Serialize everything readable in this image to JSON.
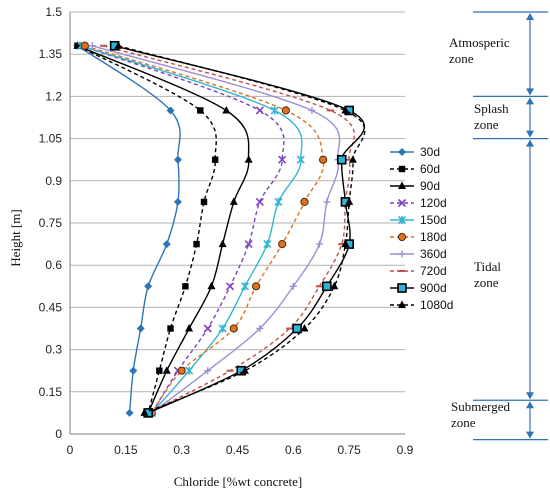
{
  "chart_data": {
    "type": "line",
    "title": "",
    "xlabel": "Chloride [%wt concrete]",
    "ylabel": "Height [m]",
    "xlim": [
      0,
      0.9
    ],
    "ylim": [
      0,
      1.5
    ],
    "xticks": [
      "0",
      "0.15",
      "0.3",
      "0.45",
      "0.6",
      "0.75",
      "0.9"
    ],
    "yticks": [
      "0",
      "0.15",
      "0.3",
      "0.45",
      "0.6",
      "0.75",
      "0.9",
      "1.05",
      "1.2",
      "1.35",
      "1.5"
    ],
    "grid": "horizontal",
    "legend_position": "right",
    "colors": {
      "30d": "#2e75b6",
      "black": "#000000",
      "purple": "#7f3fbf",
      "cyan": "#34b6d1",
      "orange": "#e2711d",
      "lilac": "#9b8fd6",
      "red": "#c0504d",
      "zone": "#2e75b6",
      "grid": "#b3b3b3"
    },
    "y": [
      1.38,
      1.15,
      0.975,
      0.825,
      0.675,
      0.525,
      0.375,
      0.225,
      0.075
    ],
    "series": [
      {
        "name": "30d",
        "style": "solid",
        "marker": "diamond",
        "color": "#2e75b6",
        "x": [
          0.02,
          0.27,
          0.29,
          0.29,
          0.26,
          0.21,
          0.19,
          0.17,
          0.16
        ]
      },
      {
        "name": "60d",
        "style": "dashed",
        "marker": "square",
        "color": "#000000",
        "x": [
          0.02,
          0.35,
          0.39,
          0.36,
          0.34,
          0.31,
          0.27,
          0.24,
          0.21
        ]
      },
      {
        "name": "90d",
        "style": "solid",
        "marker": "triangle",
        "color": "#000000",
        "x": [
          0.02,
          0.42,
          0.48,
          0.44,
          0.41,
          0.38,
          0.32,
          0.26,
          0.21
        ]
      },
      {
        "name": "120d",
        "style": "dashed",
        "marker": "x",
        "color": "#7f3fbf",
        "x": [
          0.03,
          0.51,
          0.57,
          0.51,
          0.48,
          0.43,
          0.37,
          0.29,
          0.22
        ]
      },
      {
        "name": "150d",
        "style": "solid",
        "marker": "star",
        "color": "#34b6d1",
        "x": [
          0.03,
          0.55,
          0.62,
          0.56,
          0.53,
          0.47,
          0.41,
          0.32,
          0.22
        ]
      },
      {
        "name": "180d",
        "style": "dashed",
        "marker": "circle",
        "color": "#e2711d",
        "x": [
          0.04,
          0.58,
          0.68,
          0.63,
          0.57,
          0.5,
          0.44,
          0.3,
          0.22
        ]
      },
      {
        "name": "360d",
        "style": "solid",
        "marker": "plus",
        "color": "#9b8fd6",
        "x": [
          0.06,
          0.65,
          0.72,
          0.69,
          0.67,
          0.6,
          0.51,
          0.37,
          0.22
        ]
      },
      {
        "name": "720d",
        "style": "dashed",
        "marker": "dash",
        "color": "#c0504d",
        "x": [
          0.09,
          0.7,
          0.75,
          0.74,
          0.73,
          0.67,
          0.59,
          0.43,
          0.21
        ]
      },
      {
        "name": "900d",
        "style": "solid",
        "marker": "square-lg",
        "color": "#000000",
        "x": [
          0.12,
          0.75,
          0.73,
          0.74,
          0.75,
          0.69,
          0.61,
          0.46,
          0.21
        ]
      },
      {
        "name": "1080d",
        "style": "dashed",
        "marker": "triangle",
        "color": "#000000",
        "x": [
          0.13,
          0.74,
          0.76,
          0.75,
          0.74,
          0.71,
          0.63,
          0.47,
          0.2
        ]
      }
    ],
    "zones": [
      {
        "label_lines": [
          "Atmosperic",
          "zone"
        ],
        "from": 1.5,
        "to": 1.2
      },
      {
        "label_lines": [
          "Splash",
          "zone"
        ],
        "from": 1.2,
        "to": 1.05
      },
      {
        "label_lines": [
          "Tidal",
          "zone"
        ],
        "from": 1.05,
        "to": 0.12
      },
      {
        "label_lines": [
          "Submerged",
          "zone"
        ],
        "from": 0.12,
        "to": -0.02
      }
    ]
  }
}
